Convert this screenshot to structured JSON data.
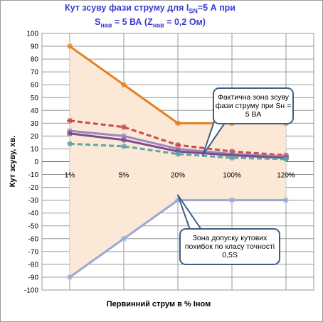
{
  "chart_data": {
    "type": "line",
    "title_parts": {
      "line1_prefix": "Кут зсуву фази струму  для I",
      "line1_sub": "SN",
      "line1_suffix": "=5 А при",
      "line2_prefix": "S",
      "line2_sub": "нав",
      "line2_suffix": " = 5 ВА (Z",
      "line2_sub2": "нав",
      "line2_suffix2": " = 0,2 Ом)"
    },
    "xlabel": "Первинний  струм в % Іном",
    "ylabel": "Кут  зсуву, хв.",
    "categories": [
      "1%",
      "5%",
      "20%",
      "100%",
      "120%"
    ],
    "ylim": [
      -100,
      100
    ],
    "yticks": [
      100,
      90,
      80,
      70,
      60,
      50,
      40,
      30,
      20,
      10,
      0,
      -10,
      -20,
      -30,
      -40,
      -50,
      -60,
      -70,
      -80,
      -90,
      -100
    ],
    "grid": true,
    "legend": "none",
    "series": [
      {
        "color": "#e4801f",
        "style": "solid",
        "marker": "star",
        "values": [
          90,
          60,
          30,
          30,
          30
        ]
      },
      {
        "color": "#99a8d4",
        "style": "solid",
        "marker": "star",
        "values": [
          -90,
          -60,
          -30,
          -30,
          -30
        ]
      },
      {
        "color": "#cc4a4a",
        "style": "dashed",
        "marker": "star",
        "values": [
          32,
          27,
          13,
          8,
          5
        ]
      },
      {
        "color": "#9c86c0",
        "style": "solid",
        "marker": "star",
        "values": [
          24,
          20,
          10,
          6,
          4
        ]
      },
      {
        "color": "#7a4a8a",
        "style": "solid",
        "marker": "star",
        "values": [
          22,
          17,
          8,
          5,
          3
        ]
      },
      {
        "color": "#5aa7a2",
        "style": "dashed",
        "marker": "star",
        "values": [
          14,
          12,
          6,
          3,
          2
        ]
      }
    ],
    "annotations": [
      {
        "text": "Фактична зона зсуву фази струму при Sн = 5 ВА",
        "points_to_category": "20%"
      },
      {
        "text": "Зона допуску кутових похибок  по класу точності  0,5S",
        "points_to_category": "20%"
      }
    ],
    "colors": {
      "title": "#3b3bd0",
      "tolerance_fill": "#fbe8d6",
      "gridline": "#9a9a9a",
      "callout_border": "#3d5f85"
    }
  }
}
